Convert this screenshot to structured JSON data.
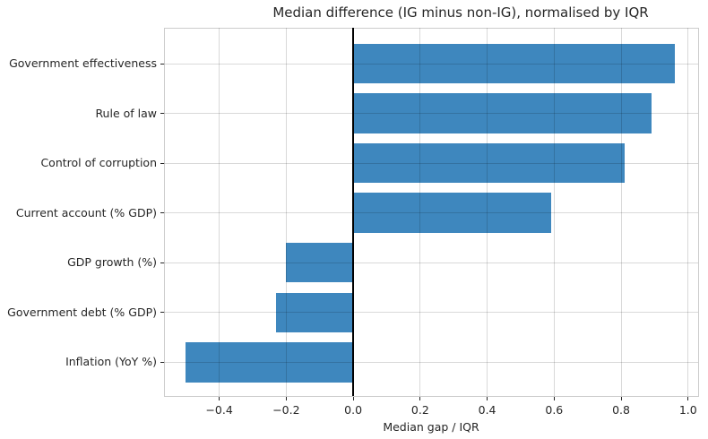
{
  "chart_data": {
    "type": "bar",
    "orientation": "horizontal",
    "title": "Median difference (IG minus non-IG), normalised by IQR",
    "xlabel": "Median gap / IQR",
    "ylabel": "",
    "categories": [
      "Government effectiveness",
      "Rule of law",
      "Control of corruption",
      "Current account (% GDP)",
      "GDP growth (%)",
      "Government debt (% GDP)",
      "Inflation (YoY %)"
    ],
    "values": [
      0.96,
      0.89,
      0.81,
      0.59,
      -0.2,
      -0.23,
      -0.5
    ],
    "xlim": [
      -0.565,
      1.03
    ],
    "xticks": [
      -0.4,
      -0.2,
      0.0,
      0.2,
      0.4,
      0.6,
      0.8,
      1.0
    ],
    "xtick_labels": [
      "−0.4",
      "−0.2",
      "0.0",
      "0.2",
      "0.4",
      "0.6",
      "0.8",
      "1.0"
    ],
    "grid": true,
    "legend": false,
    "bar_color": "#3E87BE",
    "zero_line_color": "#000000",
    "grid_color": "#d9d9d9",
    "spine_color": "#cccccc",
    "text_color": "#262626"
  }
}
